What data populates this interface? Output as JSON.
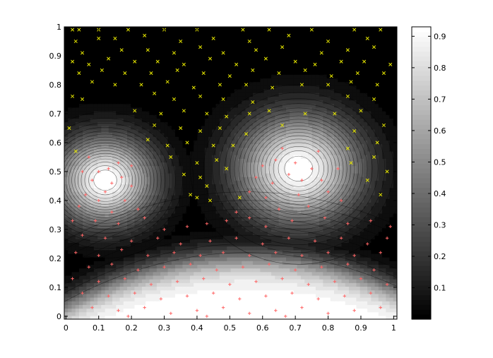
{
  "chart_data": {
    "type": "contour",
    "title": "",
    "xlabel": "",
    "ylabel": "",
    "xlim": [
      -0.005,
      1.01
    ],
    "ylim": [
      -0.01,
      1.0
    ],
    "xticks": [
      "0",
      "0.1",
      "0.2",
      "0.3",
      "0.4",
      "0.5",
      "0.6",
      "0.7",
      "0.8",
      "0.9",
      "1"
    ],
    "yticks": [
      "0",
      "0.1",
      "0.2",
      "0.3",
      "0.4",
      "0.5",
      "0.6",
      "0.7",
      "0.8",
      "0.9",
      "1"
    ],
    "colormap": "gray",
    "colorbar": {
      "range": [
        0,
        0.93
      ],
      "ticks": [
        "0.1",
        "0.2",
        "0.3",
        "0.4",
        "0.5",
        "0.6",
        "0.7",
        "0.8",
        "0.9"
      ]
    },
    "surface": {
      "peaks": [
        {
          "x": 0.12,
          "y": 0.47,
          "height": 0.93,
          "spread": 0.11
        },
        {
          "x": 0.71,
          "y": 0.51,
          "height": 0.93,
          "spread": 0.135
        }
      ],
      "bottom_band": {
        "x_center": 0.55,
        "top_y": 0.2,
        "curvature": 0.55
      },
      "contour_levels": 20
    },
    "series": [
      {
        "marker": "x",
        "color": "#e6e600",
        "points": [
          [
            0.02,
            0.99
          ],
          [
            0.04,
            0.99
          ],
          [
            0.1,
            0.99
          ],
          [
            0.19,
            0.99
          ],
          [
            0.3,
            0.99
          ],
          [
            0.4,
            0.99
          ],
          [
            0.54,
            0.99
          ],
          [
            0.62,
            0.99
          ],
          [
            0.75,
            0.99
          ],
          [
            0.88,
            0.99
          ],
          [
            0.96,
            0.99
          ],
          [
            0.03,
            0.95
          ],
          [
            0.1,
            0.96
          ],
          [
            0.15,
            0.96
          ],
          [
            0.24,
            0.97
          ],
          [
            0.35,
            0.95
          ],
          [
            0.45,
            0.96
          ],
          [
            0.56,
            0.95
          ],
          [
            0.68,
            0.97
          ],
          [
            0.8,
            0.95
          ],
          [
            0.92,
            0.96
          ],
          [
            0.05,
            0.91
          ],
          [
            0.17,
            0.92
          ],
          [
            0.25,
            0.92
          ],
          [
            0.33,
            0.91
          ],
          [
            0.41,
            0.93
          ],
          [
            0.48,
            0.91
          ],
          [
            0.58,
            0.92
          ],
          [
            0.66,
            0.93
          ],
          [
            0.78,
            0.91
          ],
          [
            0.86,
            0.92
          ],
          [
            0.94,
            0.93
          ],
          [
            0.02,
            0.88
          ],
          [
            0.07,
            0.87
          ],
          [
            0.13,
            0.89
          ],
          [
            0.21,
            0.88
          ],
          [
            0.28,
            0.88
          ],
          [
            0.36,
            0.87
          ],
          [
            0.44,
            0.89
          ],
          [
            0.52,
            0.87
          ],
          [
            0.61,
            0.89
          ],
          [
            0.7,
            0.88
          ],
          [
            0.76,
            0.87
          ],
          [
            0.84,
            0.88
          ],
          [
            0.91,
            0.88
          ],
          [
            0.99,
            0.87
          ],
          [
            0.04,
            0.84
          ],
          [
            0.11,
            0.85
          ],
          [
            0.18,
            0.84
          ],
          [
            0.26,
            0.84
          ],
          [
            0.34,
            0.85
          ],
          [
            0.42,
            0.84
          ],
          [
            0.5,
            0.83
          ],
          [
            0.57,
            0.85
          ],
          [
            0.65,
            0.84
          ],
          [
            0.73,
            0.85
          ],
          [
            0.81,
            0.83
          ],
          [
            0.89,
            0.84
          ],
          [
            0.97,
            0.84
          ],
          [
            0.08,
            0.81
          ],
          [
            0.15,
            0.8
          ],
          [
            0.23,
            0.8
          ],
          [
            0.31,
            0.81
          ],
          [
            0.39,
            0.79
          ],
          [
            0.47,
            0.8
          ],
          [
            0.55,
            0.8
          ],
          [
            0.63,
            0.79
          ],
          [
            0.72,
            0.8
          ],
          [
            0.8,
            0.8
          ],
          [
            0.87,
            0.81
          ],
          [
            0.95,
            0.8
          ],
          [
            0.02,
            0.76
          ],
          [
            0.05,
            0.75
          ],
          [
            0.27,
            0.77
          ],
          [
            0.33,
            0.75
          ],
          [
            0.41,
            0.76
          ],
          [
            0.48,
            0.75
          ],
          [
            0.57,
            0.74
          ],
          [
            0.86,
            0.76
          ],
          [
            0.94,
            0.75
          ],
          [
            0.21,
            0.71
          ],
          [
            0.29,
            0.7
          ],
          [
            0.36,
            0.71
          ],
          [
            0.43,
            0.7
          ],
          [
            0.49,
            0.69
          ],
          [
            0.56,
            0.7
          ],
          [
            0.62,
            0.71
          ],
          [
            0.73,
            0.7
          ],
          [
            0.82,
            0.7
          ],
          [
            0.9,
            0.71
          ],
          [
            0.01,
            0.65
          ],
          [
            0.27,
            0.66
          ],
          [
            0.35,
            0.65
          ],
          [
            0.41,
            0.64
          ],
          [
            0.47,
            0.65
          ],
          [
            0.55,
            0.63
          ],
          [
            0.66,
            0.66
          ],
          [
            0.88,
            0.64
          ],
          [
            0.97,
            0.66
          ],
          [
            0.25,
            0.61
          ],
          [
            0.31,
            0.59
          ],
          [
            0.37,
            0.6
          ],
          [
            0.45,
            0.59
          ],
          [
            0.51,
            0.59
          ],
          [
            0.86,
            0.58
          ],
          [
            0.95,
            0.6
          ],
          [
            0.03,
            0.57
          ],
          [
            0.32,
            0.55
          ],
          [
            0.4,
            0.53
          ],
          [
            0.46,
            0.54
          ],
          [
            0.49,
            0.51
          ],
          [
            0.87,
            0.53
          ],
          [
            0.94,
            0.55
          ],
          [
            0.36,
            0.49
          ],
          [
            0.41,
            0.48
          ],
          [
            0.43,
            0.45
          ],
          [
            0.92,
            0.47
          ],
          [
            0.98,
            0.5
          ],
          [
            0.38,
            0.42
          ],
          [
            0.4,
            0.41
          ],
          [
            0.44,
            0.4
          ],
          [
            0.53,
            0.41
          ],
          [
            0.96,
            0.42
          ]
        ]
      },
      {
        "marker": "+",
        "color": "#ff6666",
        "points": [
          [
            0.13,
            0.51
          ],
          [
            0.1,
            0.5
          ],
          [
            0.08,
            0.47
          ],
          [
            0.14,
            0.46
          ],
          [
            0.12,
            0.43
          ],
          [
            0.17,
            0.48
          ],
          [
            0.16,
            0.53
          ],
          [
            0.07,
            0.55
          ],
          [
            0.05,
            0.5
          ],
          [
            0.1,
            0.4
          ],
          [
            0.18,
            0.4
          ],
          [
            0.2,
            0.45
          ],
          [
            0.2,
            0.52
          ],
          [
            0.06,
            0.42
          ],
          [
            0.04,
            0.38
          ],
          [
            0.14,
            0.36
          ],
          [
            0.22,
            0.37
          ],
          [
            0.02,
            0.33
          ],
          [
            0.09,
            0.33
          ],
          [
            0.16,
            0.32
          ],
          [
            0.24,
            0.34
          ],
          [
            0.64,
            0.54
          ],
          [
            0.7,
            0.53
          ],
          [
            0.75,
            0.51
          ],
          [
            0.68,
            0.49
          ],
          [
            0.72,
            0.47
          ],
          [
            0.63,
            0.46
          ],
          [
            0.78,
            0.47
          ],
          [
            0.6,
            0.52
          ],
          [
            0.77,
            0.57
          ],
          [
            0.66,
            0.58
          ],
          [
            0.58,
            0.48
          ],
          [
            0.83,
            0.51
          ],
          [
            0.8,
            0.43
          ],
          [
            0.71,
            0.42
          ],
          [
            0.61,
            0.41
          ],
          [
            0.56,
            0.43
          ],
          [
            0.74,
            0.38
          ],
          [
            0.65,
            0.37
          ],
          [
            0.84,
            0.4
          ],
          [
            0.52,
            0.36
          ],
          [
            0.56,
            0.34
          ],
          [
            0.49,
            0.33
          ],
          [
            0.43,
            0.32
          ],
          [
            0.37,
            0.31
          ],
          [
            0.3,
            0.3
          ],
          [
            0.61,
            0.31
          ],
          [
            0.69,
            0.33
          ],
          [
            0.79,
            0.34
          ],
          [
            0.86,
            0.32
          ],
          [
            0.93,
            0.33
          ],
          [
            0.99,
            0.31
          ],
          [
            0.05,
            0.28
          ],
          [
            0.12,
            0.27
          ],
          [
            0.2,
            0.26
          ],
          [
            0.28,
            0.27
          ],
          [
            0.35,
            0.25
          ],
          [
            0.44,
            0.26
          ],
          [
            0.52,
            0.27
          ],
          [
            0.6,
            0.25
          ],
          [
            0.68,
            0.27
          ],
          [
            0.76,
            0.26
          ],
          [
            0.84,
            0.27
          ],
          [
            0.92,
            0.25
          ],
          [
            0.98,
            0.27
          ],
          [
            0.03,
            0.22
          ],
          [
            0.1,
            0.21
          ],
          [
            0.17,
            0.23
          ],
          [
            0.25,
            0.21
          ],
          [
            0.33,
            0.22
          ],
          [
            0.41,
            0.21
          ],
          [
            0.48,
            0.22
          ],
          [
            0.56,
            0.21
          ],
          [
            0.64,
            0.22
          ],
          [
            0.72,
            0.21
          ],
          [
            0.8,
            0.22
          ],
          [
            0.88,
            0.21
          ],
          [
            0.96,
            0.22
          ],
          [
            0.07,
            0.17
          ],
          [
            0.14,
            0.18
          ],
          [
            0.22,
            0.16
          ],
          [
            0.3,
            0.17
          ],
          [
            0.38,
            0.18
          ],
          [
            0.46,
            0.16
          ],
          [
            0.54,
            0.17
          ],
          [
            0.62,
            0.18
          ],
          [
            0.7,
            0.16
          ],
          [
            0.78,
            0.17
          ],
          [
            0.86,
            0.18
          ],
          [
            0.94,
            0.16
          ],
          [
            0.02,
            0.13
          ],
          [
            0.1,
            0.12
          ],
          [
            0.18,
            0.13
          ],
          [
            0.26,
            0.11
          ],
          [
            0.34,
            0.12
          ],
          [
            0.42,
            0.13
          ],
          [
            0.5,
            0.11
          ],
          [
            0.58,
            0.12
          ],
          [
            0.66,
            0.13
          ],
          [
            0.74,
            0.11
          ],
          [
            0.82,
            0.12
          ],
          [
            0.9,
            0.13
          ],
          [
            0.98,
            0.11
          ],
          [
            0.05,
            0.08
          ],
          [
            0.13,
            0.07
          ],
          [
            0.21,
            0.08
          ],
          [
            0.29,
            0.06
          ],
          [
            0.37,
            0.07
          ],
          [
            0.45,
            0.08
          ],
          [
            0.53,
            0.06
          ],
          [
            0.61,
            0.07
          ],
          [
            0.69,
            0.08
          ],
          [
            0.77,
            0.06
          ],
          [
            0.85,
            0.07
          ],
          [
            0.93,
            0.08
          ],
          [
            0.08,
            0.03
          ],
          [
            0.16,
            0.02
          ],
          [
            0.24,
            0.03
          ],
          [
            0.32,
            0.01
          ],
          [
            0.4,
            0.02
          ],
          [
            0.48,
            0.03
          ],
          [
            0.56,
            0.01
          ],
          [
            0.64,
            0.02
          ],
          [
            0.72,
            0.03
          ],
          [
            0.8,
            0.01
          ],
          [
            0.88,
            0.02
          ],
          [
            0.96,
            0.03
          ],
          [
            0.19,
            0.0
          ],
          [
            0.43,
            0.0
          ],
          [
            0.67,
            0.0
          ]
        ]
      }
    ]
  }
}
